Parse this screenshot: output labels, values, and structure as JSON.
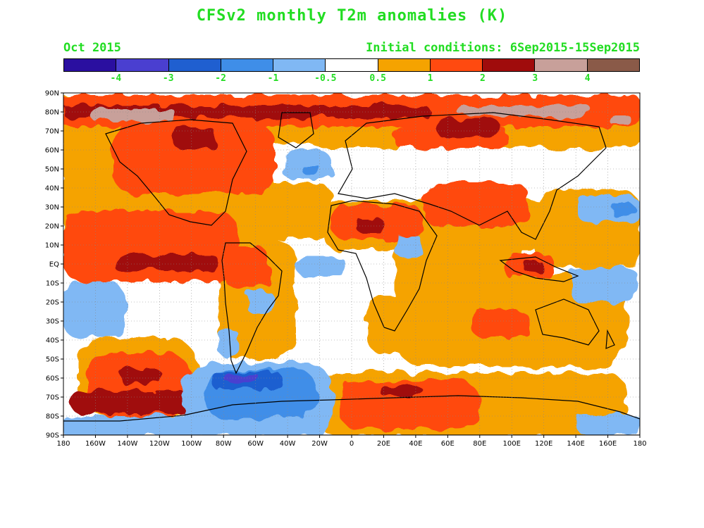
{
  "title": "CFSv2 monthly T2m anomalies (K)",
  "month": "Oct 2015",
  "initial_conditions": "Initial conditions: 6Sep2015-15Sep2015",
  "text_color": "#22dd22",
  "colorbar": {
    "colors": [
      "#2a0fa0",
      "#4a3fd0",
      "#1f5fd0",
      "#3f8ee8",
      "#80b8f4",
      "#ffffff",
      "#f5a300",
      "#ff4a10",
      "#a00c0c",
      "#c8a09a",
      "#8a5a48"
    ],
    "labels": [
      "-4",
      "-3",
      "-2",
      "-1",
      "-0.5",
      "0.5",
      "1",
      "2",
      "3",
      "4"
    ]
  },
  "lat_labels": [
    "90N",
    "80N",
    "70N",
    "60N",
    "50N",
    "40N",
    "30N",
    "20N",
    "10N",
    "EQ",
    "10S",
    "20S",
    "30S",
    "40S",
    "50S",
    "60S",
    "70S",
    "80S",
    "90S"
  ],
  "lon_labels": [
    "180",
    "160W",
    "140W",
    "120W",
    "100W",
    "80W",
    "60W",
    "40W",
    "20W",
    "0",
    "20E",
    "40E",
    "60E",
    "80E",
    "100E",
    "120E",
    "140E",
    "160E",
    "180"
  ]
}
